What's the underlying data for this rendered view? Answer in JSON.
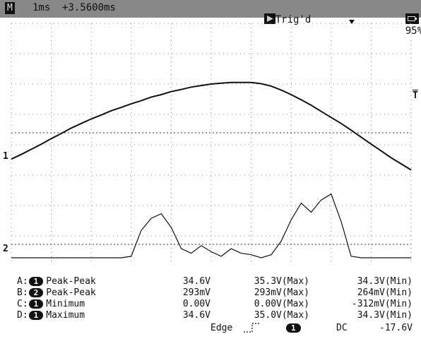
{
  "status_bar": {
    "mode": "M",
    "timebase": "1ms",
    "offset": "+3.5600ms",
    "trig_icon": "play-triangle-icon",
    "trig_state": "Trig'd",
    "battery_icon": "battery-icon",
    "battery": "95%"
  },
  "markers": {
    "ch1": "1",
    "ch2": "2",
    "trigger": "T"
  },
  "measurements": [
    {
      "slot": "A:",
      "channel": "1",
      "name": "Peak-Peak",
      "value": "34.6V",
      "max": "35.3V(Max)",
      "min": "34.3V(Min)"
    },
    {
      "slot": "B:",
      "channel": "2",
      "name": "Peak-Peak",
      "value": "293mV",
      "max": "293mV(Max)",
      "min": "264mV(Min)"
    },
    {
      "slot": "C:",
      "channel": "1",
      "name": "Minimum",
      "value": "0.00V",
      "max": "0.00V(Max)",
      "min": "-312mV(Min)"
    },
    {
      "slot": "D:",
      "channel": "1",
      "name": "Maximum",
      "value": "34.6V",
      "max": "35.0V(Max)",
      "min": "34.3V(Min)"
    }
  ],
  "trigger_info": {
    "type": "Edge",
    "slope_icon": "rising-edge-icon",
    "source": "1",
    "coupling": "DC",
    "level": "-17.6V"
  },
  "chart_data": {
    "type": "line",
    "grid": true,
    "x": [
      0,
      0.25,
      0.5,
      0.75,
      1,
      1.25,
      1.5,
      1.75,
      2,
      2.25,
      2.5,
      2.75,
      3,
      3.25,
      3.5,
      3.75,
      4,
      4.25,
      4.5,
      4.75,
      5,
      5.25,
      5.5,
      5.75,
      6,
      6.25,
      6.5,
      6.75,
      7,
      7.25,
      7.5,
      7.75,
      8,
      8.25,
      8.5,
      8.75,
      9,
      9.25,
      9.5,
      9.75,
      10
    ],
    "series": [
      {
        "values": [
          -0.12,
          0.03,
          0.2,
          0.37,
          0.55,
          0.72,
          0.9,
          1.05,
          1.2,
          1.33,
          1.47,
          1.58,
          1.7,
          1.8,
          1.92,
          2.0,
          2.1,
          2.17,
          2.25,
          2.3,
          2.35,
          2.38,
          2.4,
          2.4,
          2.4,
          2.36,
          2.28,
          2.15,
          2.0,
          1.83,
          1.65,
          1.45,
          1.25,
          1.05,
          0.83,
          0.6,
          0.37,
          0.15,
          -0.08,
          -0.28,
          -0.48
        ]
      },
      {
        "values": [
          0,
          0,
          0,
          0,
          0,
          0,
          0,
          0,
          0,
          0,
          0,
          0,
          0.05,
          0.9,
          1.3,
          1.45,
          1.0,
          0.3,
          0.15,
          0.4,
          0.2,
          0.05,
          0.3,
          0.15,
          0.1,
          0.0,
          0.1,
          0.55,
          1.25,
          1.8,
          1.5,
          1.9,
          2.1,
          1.2,
          0.05,
          0,
          0,
          0,
          0,
          0,
          0
        ]
      }
    ]
  }
}
